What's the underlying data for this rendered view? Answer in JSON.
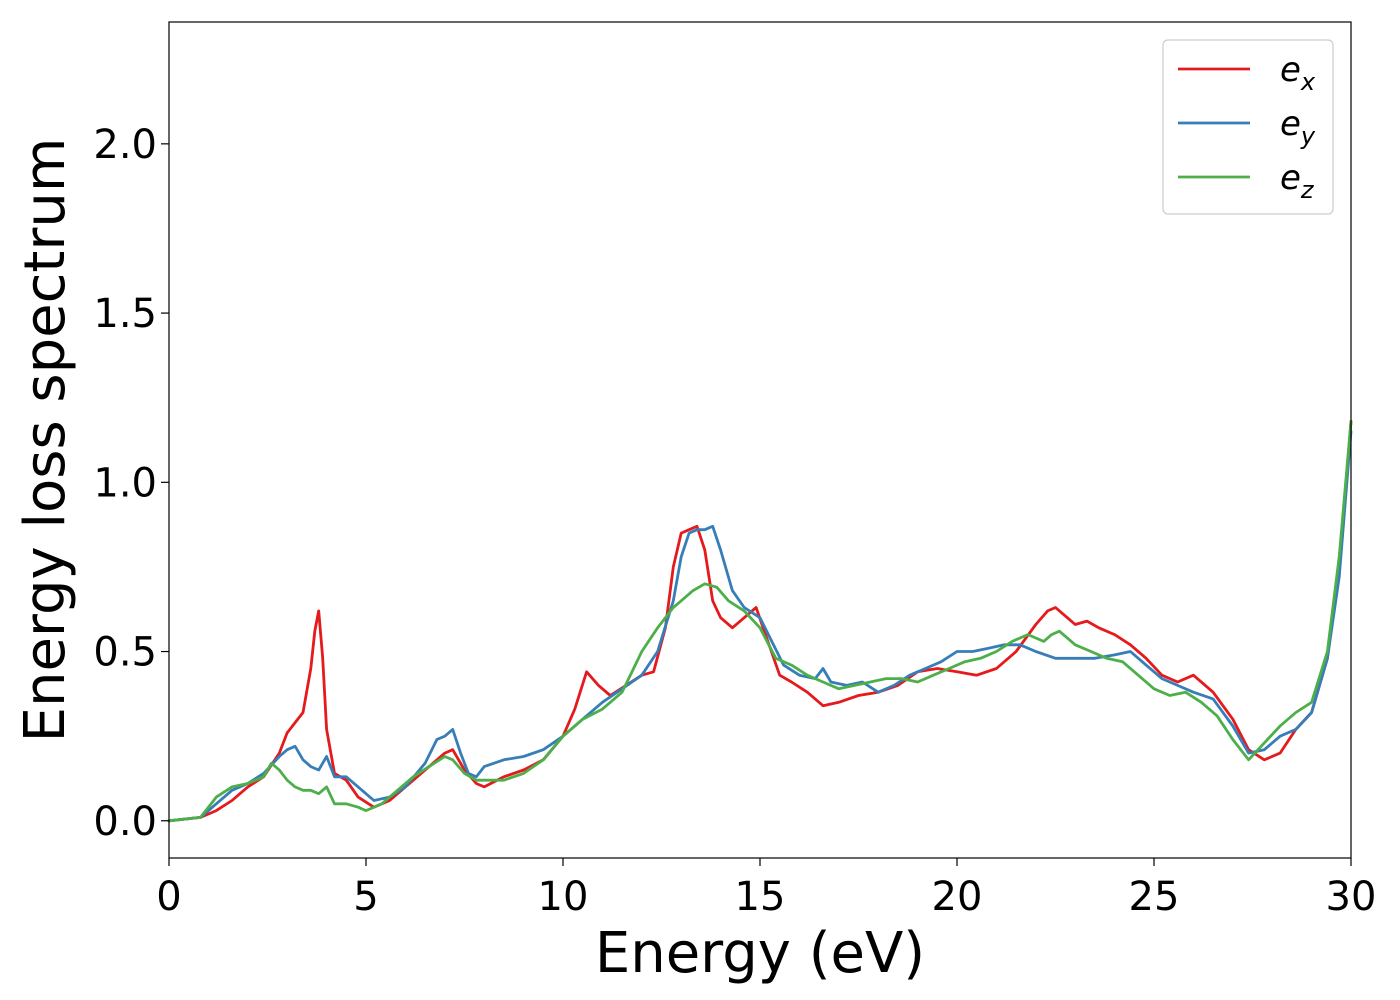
{
  "chart_data": {
    "type": "line",
    "title": "",
    "xlabel": "Energy (eV)",
    "ylabel": "Energy loss spectrum",
    "xlim": [
      0,
      30
    ],
    "ylim": [
      -0.11,
      2.36
    ],
    "xticks": [
      0,
      5,
      10,
      15,
      20,
      25,
      30
    ],
    "xtick_labels": [
      "0",
      "5",
      "10",
      "15",
      "20",
      "25",
      "30"
    ],
    "yticks": [
      0.0,
      0.5,
      1.0,
      1.5,
      2.0
    ],
    "ytick_labels": [
      "0.0",
      "0.5",
      "1.0",
      "1.5",
      "2.0"
    ],
    "grid": false,
    "legend": {
      "position": "top-right"
    },
    "series": [
      {
        "name": "e_x",
        "label_base": "e",
        "label_sub": "x",
        "color": "#e41a1c",
        "x": [
          0,
          0.8,
          1.2,
          1.6,
          2.0,
          2.4,
          2.8,
          3.0,
          3.2,
          3.4,
          3.6,
          3.7,
          3.8,
          3.9,
          4.0,
          4.2,
          4.5,
          4.8,
          5.2,
          5.6,
          6.0,
          6.5,
          7.0,
          7.2,
          7.5,
          7.8,
          8.0,
          8.5,
          9.0,
          9.5,
          10.0,
          10.3,
          10.6,
          10.9,
          11.2,
          11.6,
          12.0,
          12.3,
          12.6,
          12.8,
          13.0,
          13.2,
          13.4,
          13.6,
          13.8,
          14.0,
          14.3,
          14.6,
          14.9,
          15.2,
          15.5,
          15.8,
          16.2,
          16.6,
          17.0,
          17.5,
          18.0,
          18.5,
          19.0,
          19.5,
          20.0,
          20.5,
          21.0,
          21.5,
          22.0,
          22.3,
          22.5,
          22.8,
          23.0,
          23.3,
          23.6,
          24.0,
          24.4,
          24.8,
          25.2,
          25.6,
          26.0,
          26.5,
          27.0,
          27.4,
          27.8,
          28.2,
          28.6,
          29.0,
          29.4,
          29.7,
          30.0
        ],
        "y": [
          0.0,
          0.01,
          0.03,
          0.06,
          0.1,
          0.13,
          0.2,
          0.26,
          0.29,
          0.32,
          0.45,
          0.56,
          0.62,
          0.48,
          0.27,
          0.14,
          0.12,
          0.07,
          0.04,
          0.06,
          0.1,
          0.15,
          0.2,
          0.21,
          0.15,
          0.11,
          0.1,
          0.13,
          0.15,
          0.18,
          0.25,
          0.33,
          0.44,
          0.4,
          0.37,
          0.4,
          0.43,
          0.44,
          0.57,
          0.75,
          0.85,
          0.86,
          0.87,
          0.8,
          0.65,
          0.6,
          0.57,
          0.6,
          0.63,
          0.53,
          0.43,
          0.41,
          0.38,
          0.34,
          0.35,
          0.37,
          0.38,
          0.4,
          0.44,
          0.45,
          0.44,
          0.43,
          0.45,
          0.5,
          0.58,
          0.62,
          0.63,
          0.6,
          0.58,
          0.59,
          0.57,
          0.55,
          0.52,
          0.48,
          0.43,
          0.41,
          0.43,
          0.38,
          0.3,
          0.21,
          0.18,
          0.2,
          0.27,
          0.32,
          0.48,
          0.75,
          1.18
        ]
      },
      {
        "name": "e_y",
        "label_base": "e",
        "label_sub": "y",
        "color": "#377eb8",
        "x": [
          0,
          0.8,
          1.2,
          1.6,
          2.0,
          2.4,
          2.8,
          3.0,
          3.2,
          3.4,
          3.6,
          3.8,
          4.0,
          4.2,
          4.5,
          4.8,
          5.2,
          5.6,
          6.0,
          6.5,
          6.8,
          7.0,
          7.2,
          7.4,
          7.6,
          7.8,
          8.0,
          8.5,
          9.0,
          9.5,
          10.0,
          10.5,
          11.0,
          11.5,
          12.0,
          12.4,
          12.8,
          13.0,
          13.2,
          13.4,
          13.6,
          13.8,
          14.0,
          14.3,
          14.6,
          15.0,
          15.3,
          15.6,
          16.0,
          16.4,
          16.6,
          16.8,
          17.2,
          17.6,
          18.0,
          18.4,
          18.8,
          19.2,
          19.6,
          20.0,
          20.4,
          20.8,
          21.2,
          21.6,
          22.0,
          22.5,
          23.0,
          23.5,
          24.0,
          24.4,
          24.8,
          25.2,
          25.6,
          26.0,
          26.5,
          27.0,
          27.4,
          27.8,
          28.2,
          28.6,
          29.0,
          29.4,
          29.7,
          30.0
        ],
        "y": [
          0.0,
          0.01,
          0.05,
          0.09,
          0.11,
          0.14,
          0.19,
          0.21,
          0.22,
          0.18,
          0.16,
          0.15,
          0.19,
          0.13,
          0.13,
          0.1,
          0.06,
          0.07,
          0.1,
          0.17,
          0.24,
          0.25,
          0.27,
          0.2,
          0.14,
          0.13,
          0.16,
          0.18,
          0.19,
          0.21,
          0.25,
          0.3,
          0.35,
          0.39,
          0.43,
          0.5,
          0.65,
          0.78,
          0.85,
          0.86,
          0.86,
          0.87,
          0.8,
          0.68,
          0.63,
          0.6,
          0.53,
          0.46,
          0.43,
          0.42,
          0.45,
          0.41,
          0.4,
          0.41,
          0.38,
          0.4,
          0.43,
          0.45,
          0.47,
          0.5,
          0.5,
          0.51,
          0.52,
          0.52,
          0.5,
          0.48,
          0.48,
          0.48,
          0.49,
          0.5,
          0.46,
          0.42,
          0.4,
          0.38,
          0.36,
          0.28,
          0.2,
          0.21,
          0.25,
          0.27,
          0.32,
          0.48,
          0.72,
          1.15
        ]
      },
      {
        "name": "e_z",
        "label_base": "e",
        "label_sub": "z",
        "color": "#4daf4a",
        "x": [
          0,
          0.8,
          1.2,
          1.6,
          2.0,
          2.4,
          2.6,
          2.8,
          3.0,
          3.2,
          3.4,
          3.6,
          3.8,
          4.0,
          4.2,
          4.5,
          4.8,
          5.0,
          5.4,
          5.8,
          6.2,
          6.6,
          7.0,
          7.2,
          7.5,
          7.8,
          8.0,
          8.5,
          9.0,
          9.5,
          10.0,
          10.5,
          11.0,
          11.5,
          12.0,
          12.4,
          12.8,
          13.0,
          13.3,
          13.6,
          13.9,
          14.2,
          14.6,
          15.0,
          15.4,
          15.8,
          16.2,
          16.6,
          17.0,
          17.4,
          17.8,
          18.2,
          18.6,
          19.0,
          19.4,
          19.8,
          20.2,
          20.6,
          21.0,
          21.4,
          21.8,
          22.2,
          22.4,
          22.6,
          23.0,
          23.4,
          23.8,
          24.2,
          24.6,
          25.0,
          25.4,
          25.8,
          26.2,
          26.6,
          27.0,
          27.4,
          27.8,
          28.2,
          28.6,
          29.0,
          29.4,
          29.7,
          30.0
        ],
        "y": [
          0.0,
          0.01,
          0.07,
          0.1,
          0.11,
          0.13,
          0.17,
          0.15,
          0.12,
          0.1,
          0.09,
          0.09,
          0.08,
          0.1,
          0.05,
          0.05,
          0.04,
          0.03,
          0.05,
          0.09,
          0.13,
          0.16,
          0.19,
          0.18,
          0.14,
          0.12,
          0.12,
          0.12,
          0.14,
          0.18,
          0.25,
          0.3,
          0.33,
          0.38,
          0.5,
          0.57,
          0.63,
          0.65,
          0.68,
          0.7,
          0.69,
          0.65,
          0.62,
          0.57,
          0.48,
          0.46,
          0.43,
          0.41,
          0.39,
          0.4,
          0.41,
          0.42,
          0.42,
          0.41,
          0.43,
          0.45,
          0.47,
          0.48,
          0.5,
          0.53,
          0.55,
          0.53,
          0.55,
          0.56,
          0.52,
          0.5,
          0.48,
          0.47,
          0.43,
          0.39,
          0.37,
          0.38,
          0.35,
          0.31,
          0.24,
          0.18,
          0.23,
          0.28,
          0.32,
          0.35,
          0.5,
          0.78,
          1.18
        ]
      }
    ]
  }
}
